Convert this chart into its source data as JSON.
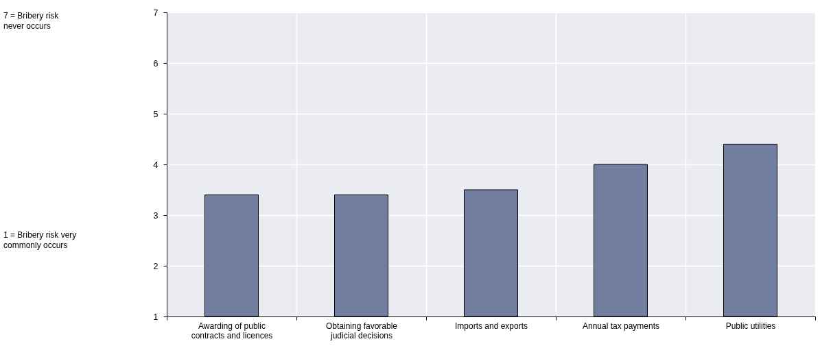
{
  "chart_data": {
    "type": "bar",
    "categories": [
      "Awarding of public contracts and licences",
      "Obtaining favorable judicial decisions",
      "Imports and exports",
      "Annual tax payments",
      "Public utilities"
    ],
    "values": [
      3.4,
      3.4,
      3.5,
      4.0,
      4.4
    ],
    "color": "#717ea0",
    "ylim": [
      1,
      7
    ],
    "yticks": [
      1,
      2,
      3,
      4,
      5,
      6,
      7
    ],
    "grid": true,
    "annotations": [
      "7 = Bribery risk never occurs",
      "1 = Bribery risk very commonly occurs"
    ]
  }
}
